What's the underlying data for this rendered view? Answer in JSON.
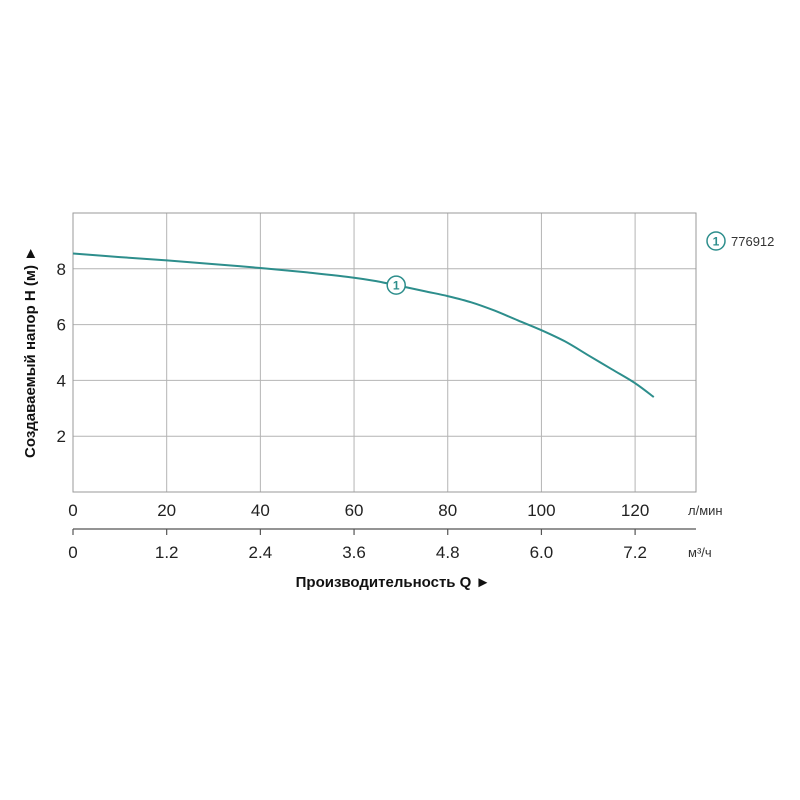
{
  "chart_data": {
    "type": "line",
    "xlabel": "Производительность Q ►",
    "ylabel": "Создаваемый напор H (м) ►",
    "x_unit": "л/мин",
    "x2_unit": "м³/ч",
    "xlim": [
      0,
      133
    ],
    "ylim": [
      0,
      10
    ],
    "x_ticks": [
      {
        "value": 0,
        "label": "0"
      },
      {
        "value": 20,
        "label": "20"
      },
      {
        "value": 40,
        "label": "40"
      },
      {
        "value": 60,
        "label": "60"
      },
      {
        "value": 80,
        "label": "80"
      },
      {
        "value": 100,
        "label": "100"
      },
      {
        "value": 120,
        "label": "120"
      }
    ],
    "x2_ticks": [
      {
        "value": 0,
        "label": "0"
      },
      {
        "value": 20,
        "label": "1.2"
      },
      {
        "value": 40,
        "label": "2.4"
      },
      {
        "value": 60,
        "label": "3.6"
      },
      {
        "value": 80,
        "label": "4.8"
      },
      {
        "value": 100,
        "label": "6.0"
      },
      {
        "value": 120,
        "label": "7.2"
      }
    ],
    "y_ticks": [
      {
        "value": 2,
        "label": "2"
      },
      {
        "value": 4,
        "label": "4"
      },
      {
        "value": 6,
        "label": "6"
      },
      {
        "value": 8,
        "label": "8"
      }
    ],
    "grid": true,
    "legend_position": "right",
    "series": [
      {
        "name": "776912",
        "marker_label": "1",
        "marker_at": 69,
        "color": "#2d8e8c",
        "x": [
          0,
          10,
          20,
          30,
          40,
          50,
          60,
          65,
          70,
          75,
          80,
          85,
          90,
          95,
          100,
          105,
          110,
          115,
          120,
          124
        ],
        "y": [
          8.55,
          8.42,
          8.3,
          8.17,
          8.03,
          7.87,
          7.68,
          7.55,
          7.38,
          7.2,
          7.02,
          6.8,
          6.5,
          6.15,
          5.8,
          5.4,
          4.9,
          4.4,
          3.9,
          3.4
        ]
      }
    ]
  }
}
